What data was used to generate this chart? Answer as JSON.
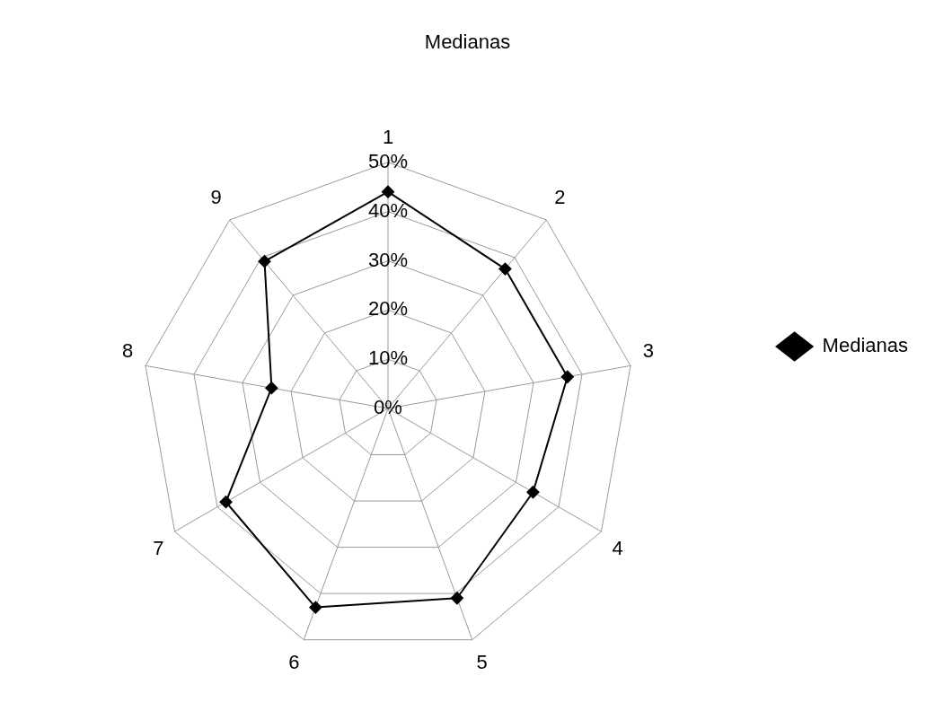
{
  "chart_data": {
    "type": "radar",
    "title": "Medianas",
    "categories": [
      "1",
      "2",
      "3",
      "4",
      "5",
      "6",
      "7",
      "8",
      "9"
    ],
    "series": [
      {
        "name": "Medianas",
        "color": "#000000",
        "values": [
          44,
          37,
          37,
          34,
          41,
          43,
          38,
          24,
          39
        ]
      }
    ],
    "ylim": [
      0,
      50
    ],
    "yticks": [
      {
        "value": 0,
        "label": "0%"
      },
      {
        "value": 10,
        "label": "10%"
      },
      {
        "value": 20,
        "label": "20%"
      },
      {
        "value": 30,
        "label": "30%"
      },
      {
        "value": 40,
        "label": "40%"
      },
      {
        "value": 50,
        "label": "50%"
      }
    ],
    "grid": true,
    "legend": "right",
    "marker": "diamond",
    "line_style": "solid"
  }
}
